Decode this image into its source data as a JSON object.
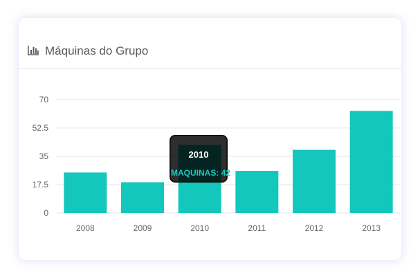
{
  "card": {
    "title": "Máquinas do Grupo",
    "icon": "bar-chart-icon"
  },
  "tooltip": {
    "title": "2010",
    "label": "MAQUINAS: 42"
  },
  "colors": {
    "bar": "#13c7bc",
    "grid": "#e4e6ea",
    "text": "#666666"
  },
  "chart_data": {
    "type": "bar",
    "title": "Máquinas do Grupo",
    "categories": [
      "2008",
      "2009",
      "2010",
      "2011",
      "2012",
      "2013"
    ],
    "series": [
      {
        "name": "MAQUINAS",
        "values": [
          25,
          19,
          42,
          26,
          39,
          63
        ]
      }
    ],
    "yticks": [
      "0",
      "17.5",
      "35",
      "52.5",
      "70"
    ],
    "ylim": [
      0,
      70
    ],
    "grid": true,
    "legend": "none"
  }
}
